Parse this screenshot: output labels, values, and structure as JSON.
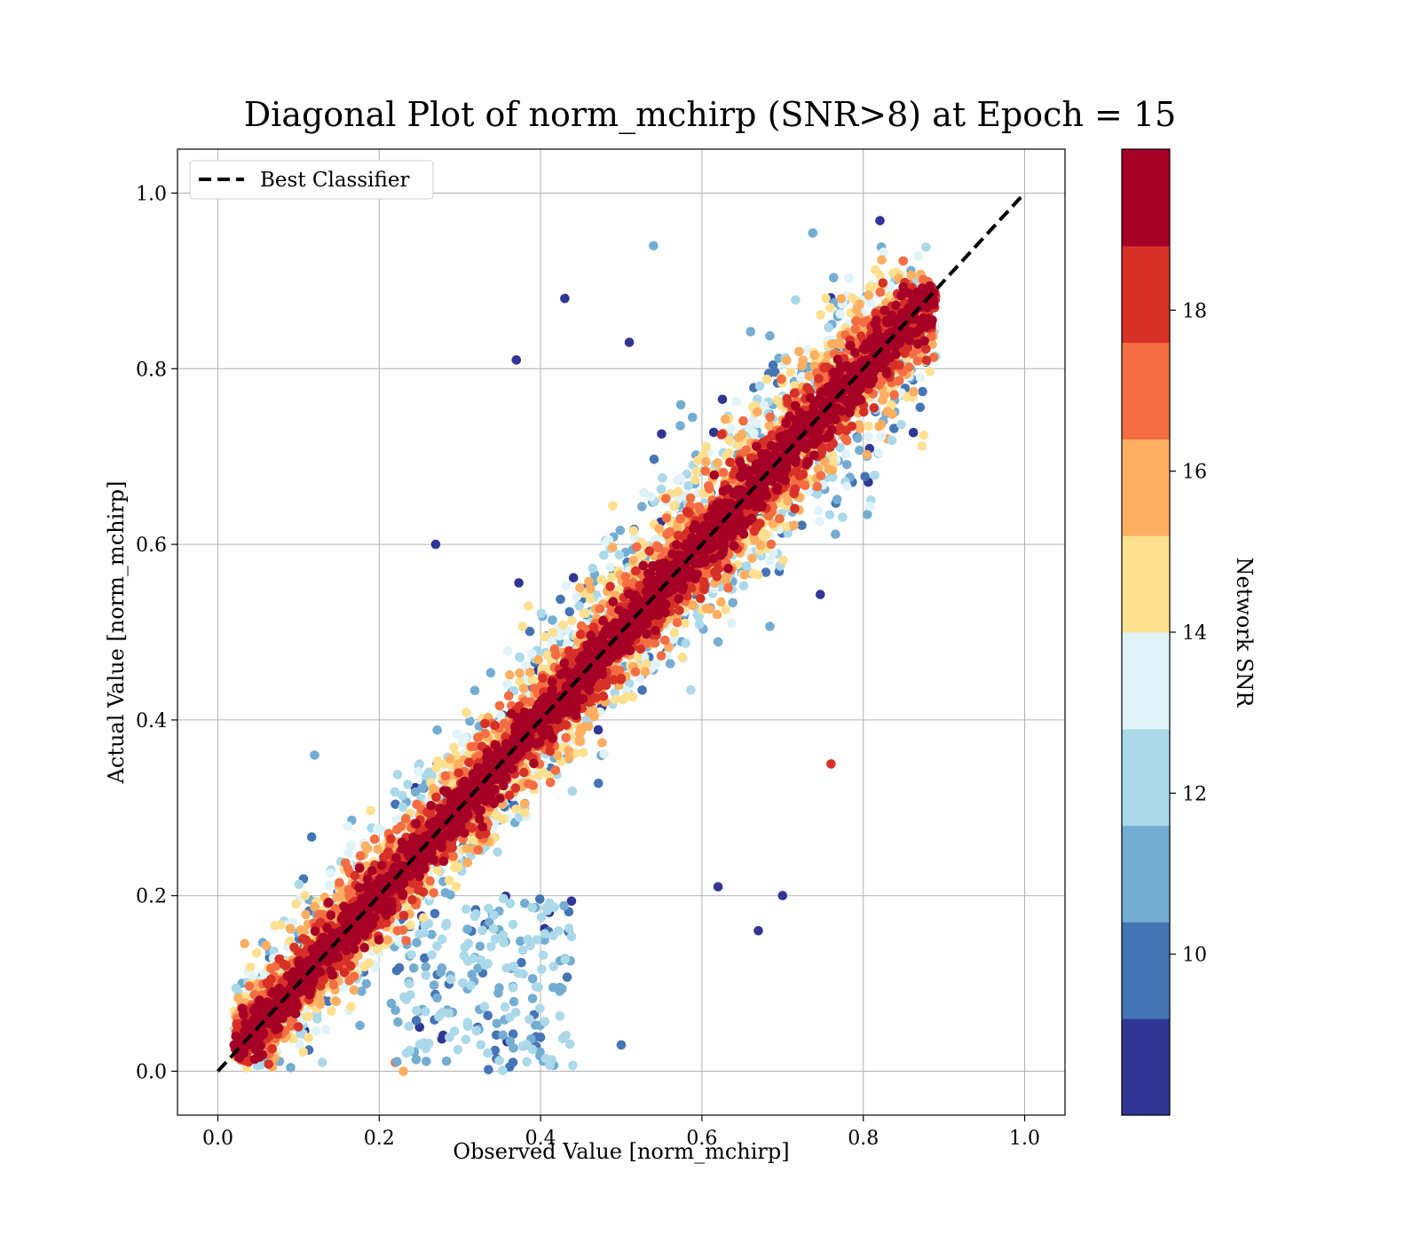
{
  "chart_data": {
    "type": "scatter",
    "title": "Diagonal Plot of norm_mchirp (SNR>8) at Epoch = 15",
    "xlabel": "Observed Value [norm_mchirp]",
    "ylabel": "Actual Value [norm_mchirp]",
    "xlim": [
      -0.05,
      1.05
    ],
    "ylim": [
      -0.05,
      1.05
    ],
    "xticks": [
      "0.0",
      "0.2",
      "0.4",
      "0.6",
      "0.8",
      "1.0"
    ],
    "yticks": [
      "0.0",
      "0.2",
      "0.4",
      "0.6",
      "0.8",
      "1.0"
    ],
    "grid": true,
    "legend": {
      "position": "top-left",
      "entries": [
        {
          "label": "Best Classifier",
          "style": "dashed",
          "color": "#000000"
        }
      ]
    },
    "reference_line": {
      "name": "Best Classifier",
      "x": [
        0.0,
        1.0
      ],
      "y": [
        0.0,
        1.0
      ],
      "style": "dashed"
    },
    "colorbar": {
      "label": "Network SNR",
      "range": [
        8,
        20
      ],
      "ticks": [
        "10",
        "12",
        "14",
        "16",
        "18"
      ],
      "colors": [
        "#313695",
        "#4575b4",
        "#74add1",
        "#abd9e9",
        "#e0f3f8",
        "#fee090",
        "#fdae61",
        "#f46d43",
        "#d73027",
        "#a50026"
      ]
    },
    "point_cloud": {
      "description_counts": "dense scatter concentrated along diagonal",
      "x_range": [
        0.02,
        0.89
      ],
      "y_range": [
        0.0,
        1.0
      ],
      "outliers": [
        {
          "x": 0.37,
          "y": 0.81,
          "snr": 8.5
        },
        {
          "x": 0.43,
          "y": 0.88,
          "snr": 8.5
        },
        {
          "x": 0.12,
          "y": 0.36,
          "snr": 11
        },
        {
          "x": 0.67,
          "y": 0.16,
          "snr": 8.5
        },
        {
          "x": 0.7,
          "y": 0.2,
          "snr": 8.5
        },
        {
          "x": 0.5,
          "y": 0.03,
          "snr": 10
        },
        {
          "x": 0.23,
          "y": 0.0,
          "snr": 16
        },
        {
          "x": 0.22,
          "y": 0.01,
          "snr": 17
        },
        {
          "x": 0.62,
          "y": 0.21,
          "snr": 9
        },
        {
          "x": 0.51,
          "y": 0.83,
          "snr": 9
        },
        {
          "x": 0.27,
          "y": 0.6,
          "snr": 9
        },
        {
          "x": 0.54,
          "y": 0.94,
          "snr": 11
        },
        {
          "x": 0.76,
          "y": 0.35,
          "snr": 18
        },
        {
          "x": 0.83,
          "y": 0.72,
          "snr": 16
        }
      ]
    }
  }
}
